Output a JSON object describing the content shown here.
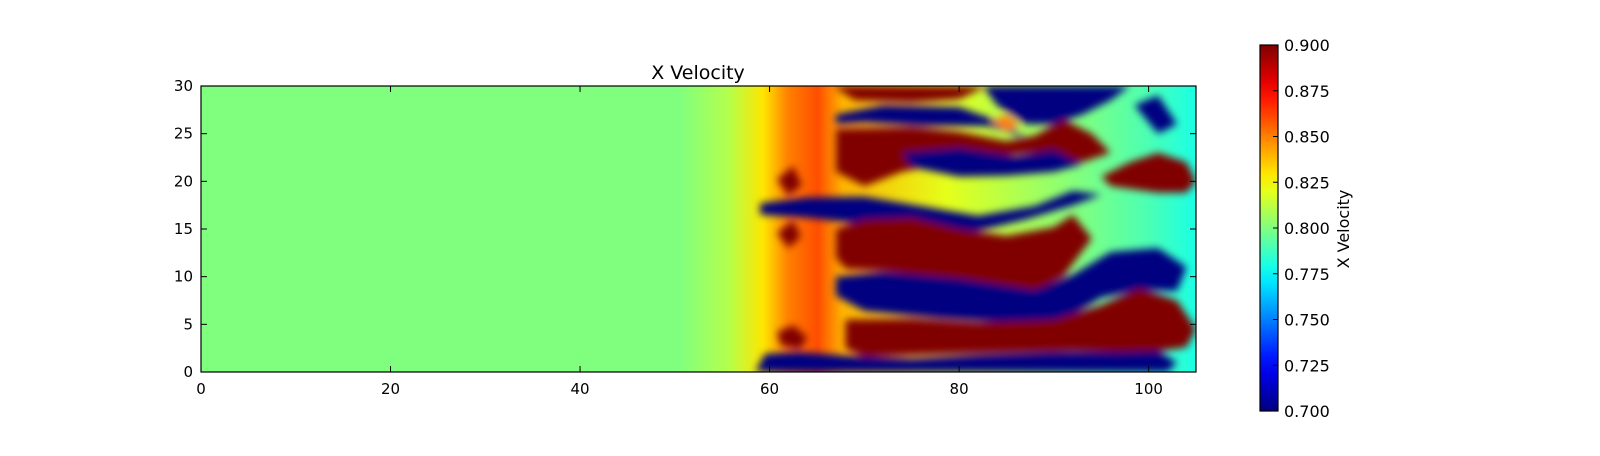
{
  "chart_data": {
    "type": "heatmap",
    "title": "X Velocity",
    "xlabel": "",
    "ylabel": "",
    "xlim": [
      0,
      105
    ],
    "ylim": [
      0,
      30
    ],
    "x_ticks": [
      0,
      20,
      40,
      60,
      80,
      100
    ],
    "y_ticks": [
      0,
      5,
      10,
      15,
      20,
      25,
      30
    ],
    "colormap": "jet",
    "grid": false,
    "background_value": 0.8,
    "colorbar": {
      "label": "X Velocity",
      "range": [
        0.7,
        0.9
      ],
      "ticks": [
        "0.700",
        "0.725",
        "0.750",
        "0.775",
        "0.800",
        "0.825",
        "0.850",
        "0.875",
        "0.900"
      ]
    },
    "regions": [
      {
        "value": 0.9,
        "outline": [
          [
            67,
            29.8
          ],
          [
            69,
            28.5
          ],
          [
            75,
            28.3
          ],
          [
            80,
            28.6
          ],
          [
            82.5,
            29.8
          ],
          [
            83,
            30
          ],
          [
            67,
            30
          ]
        ]
      },
      {
        "value": 0.7,
        "outline": [
          [
            82.5,
            30
          ],
          [
            84,
            28
          ],
          [
            87,
            26
          ],
          [
            90,
            26
          ],
          [
            93,
            27
          ],
          [
            96,
            28.5
          ],
          [
            98,
            30
          ]
        ]
      },
      {
        "value": 0.7,
        "outline": [
          [
            67,
            27
          ],
          [
            72,
            28
          ],
          [
            80,
            27.8
          ],
          [
            85,
            26
          ],
          [
            87,
            24.6
          ],
          [
            83,
            25.8
          ],
          [
            76,
            25.8
          ],
          [
            70,
            26.2
          ],
          [
            67,
            26
          ]
        ]
      },
      {
        "value": 0.9,
        "outline": [
          [
            67,
            25.5
          ],
          [
            75,
            25.7
          ],
          [
            80,
            25.2
          ],
          [
            85,
            24.2
          ],
          [
            88,
            24.8
          ],
          [
            91,
            26.5
          ],
          [
            94,
            25
          ],
          [
            96,
            23
          ],
          [
            93,
            22
          ],
          [
            88,
            23
          ],
          [
            82,
            22.5
          ],
          [
            74,
            21
          ],
          [
            70,
            19.5
          ],
          [
            67,
            21
          ]
        ]
      },
      {
        "value": 0.7,
        "outline": [
          [
            74,
            23
          ],
          [
            80,
            23.5
          ],
          [
            86,
            22.6
          ],
          [
            90,
            23.3
          ],
          [
            93,
            21.8
          ],
          [
            90,
            21
          ],
          [
            85,
            20.6
          ],
          [
            80,
            20.5
          ],
          [
            75,
            21.5
          ]
        ]
      },
      {
        "value": 0.9,
        "outline": [
          [
            95,
            20.5
          ],
          [
            98,
            22
          ],
          [
            101,
            23
          ],
          [
            104,
            22
          ],
          [
            105,
            20
          ],
          [
            104,
            18.8
          ],
          [
            101,
            18.8
          ],
          [
            96,
            19.5
          ]
        ]
      },
      {
        "value": 0.7,
        "outline": [
          [
            59,
            17.7
          ],
          [
            64,
            18.3
          ],
          [
            70,
            18.4
          ],
          [
            76,
            17.4
          ],
          [
            82,
            16.4
          ],
          [
            88,
            17.4
          ],
          [
            92,
            19
          ],
          [
            95,
            18.6
          ],
          [
            92,
            17.5
          ],
          [
            87,
            16
          ],
          [
            82,
            14.8
          ],
          [
            76,
            14.5
          ],
          [
            70,
            15.5
          ],
          [
            64,
            16.2
          ],
          [
            59,
            16.5
          ]
        ]
      },
      {
        "value": 0.9,
        "outline": [
          [
            67,
            15
          ],
          [
            70,
            16
          ],
          [
            75,
            16.2
          ],
          [
            80,
            15
          ],
          [
            85,
            14.3
          ],
          [
            90,
            15.2
          ],
          [
            92,
            16.5
          ],
          [
            94,
            14
          ],
          [
            91,
            10
          ],
          [
            88,
            8.4
          ],
          [
            84,
            8.8
          ],
          [
            78,
            9.8
          ],
          [
            72,
            10.6
          ],
          [
            68,
            10.8
          ],
          [
            67,
            12
          ]
        ]
      },
      {
        "value": 0.7,
        "outline": [
          [
            67,
            10
          ],
          [
            72,
            10.5
          ],
          [
            80,
            9.8
          ],
          [
            88,
            8.6
          ],
          [
            92,
            10.2
          ],
          [
            96,
            12.6
          ],
          [
            101,
            13
          ],
          [
            104,
            11
          ],
          [
            103,
            8.5
          ],
          [
            99,
            8.6
          ],
          [
            95,
            7.8
          ],
          [
            91,
            5.4
          ],
          [
            85,
            5.2
          ],
          [
            78,
            5.6
          ],
          [
            70,
            6.4
          ],
          [
            67,
            8
          ]
        ]
      },
      {
        "value": 0.9,
        "outline": [
          [
            68,
            5.5
          ],
          [
            75,
            5.6
          ],
          [
            82,
            5.2
          ],
          [
            90,
            5.5
          ],
          [
            95,
            7
          ],
          [
            99,
            8.8
          ],
          [
            103,
            7.5
          ],
          [
            105,
            4.5
          ],
          [
            104,
            2.6
          ],
          [
            100,
            2
          ],
          [
            92,
            2.2
          ],
          [
            84,
            2
          ],
          [
            76,
            1.8
          ],
          [
            70,
            1.6
          ],
          [
            68,
            2.5
          ]
        ]
      },
      {
        "value": 0.7,
        "outline": [
          [
            58.5,
            0
          ],
          [
            59.5,
            1.9
          ],
          [
            63,
            2.1
          ],
          [
            68,
            1.7
          ],
          [
            75,
            1.4
          ],
          [
            82,
            1.8
          ],
          [
            90,
            2.1
          ],
          [
            97,
            2.1
          ],
          [
            101,
            2.2
          ],
          [
            103,
            1
          ],
          [
            102,
            0
          ]
        ]
      },
      {
        "value": 0.9,
        "outline": [
          [
            60.8,
            4.2
          ],
          [
            62.5,
            4.9
          ],
          [
            64,
            3.6
          ],
          [
            63.2,
            2.4
          ],
          [
            61.2,
            2.8
          ]
        ]
      },
      {
        "value": 0.9,
        "outline": [
          [
            60.8,
            20.2
          ],
          [
            62.5,
            21.6
          ],
          [
            63.4,
            19.6
          ],
          [
            62,
            18.5
          ]
        ]
      },
      {
        "value": 0.9,
        "outline": [
          [
            60.8,
            14.6
          ],
          [
            62.5,
            15.9
          ],
          [
            63.3,
            14.2
          ],
          [
            62,
            13
          ]
        ]
      },
      {
        "value": 0.85,
        "outline": [
          [
            83.5,
            26.3
          ],
          [
            85,
            27
          ],
          [
            86.4,
            26
          ],
          [
            85,
            25.2
          ]
        ]
      },
      {
        "value": 0.7,
        "outline": [
          [
            98.5,
            28
          ],
          [
            101,
            29
          ],
          [
            103,
            26
          ],
          [
            101,
            25
          ]
        ]
      }
    ]
  }
}
